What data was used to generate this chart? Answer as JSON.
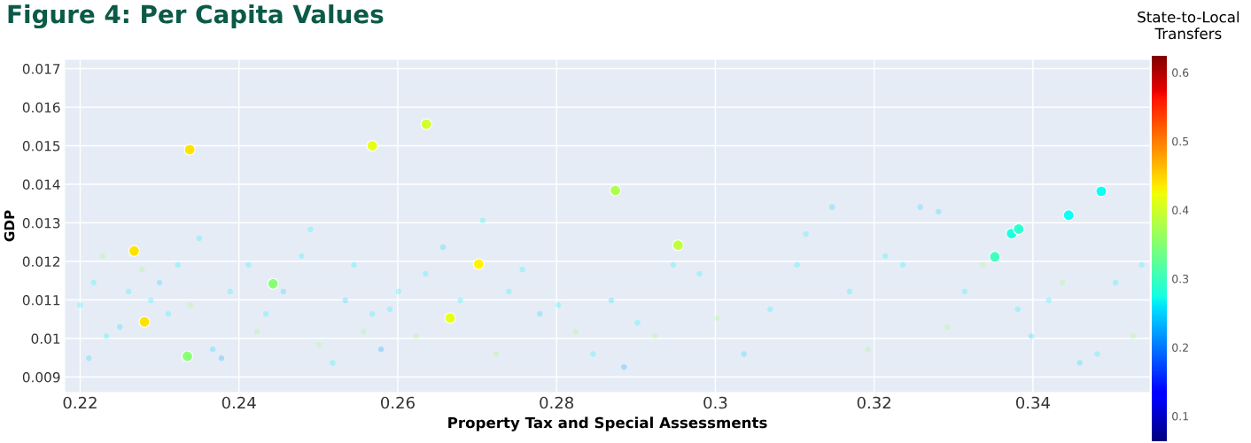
{
  "chart_data": {
    "type": "scatter",
    "title": "Figure 4: Per Capita Values",
    "xlabel": "Property Tax and Special Assessments",
    "ylabel": "GDP",
    "clabel": "State-to-Local Transfers",
    "xlim": [
      0.2181,
      0.3547
    ],
    "xticks": [
      0.22,
      0.24,
      0.26,
      0.28,
      0.3,
      0.32,
      0.34
    ],
    "ylim": [
      0.00861,
      0.01723
    ],
    "yticks": [
      0.009,
      0.01,
      0.011,
      0.012,
      0.013,
      0.014,
      0.015,
      0.016,
      0.017
    ],
    "clim": [
      0.064,
      0.625
    ],
    "cticks": [
      0.1,
      0.2,
      0.3,
      0.4,
      0.5,
      0.6
    ],
    "grid": true,
    "marker": "circle",
    "series": [
      {
        "x": [
          0.22,
          0.2211,
          0.2217,
          0.2228,
          0.2233,
          0.225,
          0.2261,
          0.2278,
          0.2289,
          0.23,
          0.2311,
          0.2323,
          0.2339,
          0.235,
          0.2367,
          0.2378,
          0.2389,
          0.2412,
          0.2423,
          0.2434,
          0.2456,
          0.2479,
          0.249,
          0.2501,
          0.2518,
          0.2534,
          0.2545,
          0.2557,
          0.2568,
          0.2579,
          0.259,
          0.2601,
          0.2623,
          0.2635,
          0.2657,
          0.2679,
          0.2707,
          0.2724,
          0.274,
          0.2757,
          0.2779,
          0.2802,
          0.2824,
          0.2846,
          0.2869,
          0.2885,
          0.2902,
          0.2924,
          0.2947,
          0.298,
          0.3002,
          0.3036,
          0.3069,
          0.3103,
          0.3114,
          0.3147,
          0.3169,
          0.3192,
          0.3214,
          0.3236,
          0.3258,
          0.3281,
          0.3292,
          0.3314,
          0.3337,
          0.3381,
          0.3398,
          0.342,
          0.3437,
          0.3459,
          0.3481,
          0.3504,
          0.3526,
          0.3537
        ],
        "values": [
          0.01087,
          0.00949,
          0.01145,
          0.01214,
          0.01006,
          0.0103,
          0.01122,
          0.01179,
          0.01099,
          0.01145,
          0.01064,
          0.01191,
          0.01087,
          0.0126,
          0.00972,
          0.00949,
          0.01122,
          0.01191,
          0.01018,
          0.01064,
          0.01122,
          0.01214,
          0.01283,
          0.00983,
          0.00937,
          0.01099,
          0.01191,
          0.01018,
          0.01064,
          0.00972,
          0.01076,
          0.01122,
          0.01006,
          0.01168,
          0.01237,
          0.01099,
          0.01306,
          0.0096,
          0.01122,
          0.01179,
          0.01064,
          0.01087,
          0.01018,
          0.0096,
          0.01099,
          0.00926,
          0.01041,
          0.01006,
          0.01191,
          0.01168,
          0.01053,
          0.0096,
          0.01076,
          0.01191,
          0.01271,
          0.01341,
          0.01122,
          0.00972,
          0.01214,
          0.01191,
          0.01341,
          0.01329,
          0.0103,
          0.01122,
          0.01191,
          0.01076,
          0.01006,
          0.01099,
          0.01145,
          0.00937,
          0.0096,
          0.01145,
          0.01006,
          0.01191
        ],
        "colors": [
          "#00f7ff",
          "#00d3ff",
          "#00f7ff",
          "#9cff63",
          "#00f7ff",
          "#00d3ff",
          "#00f7ff",
          "#9cff63",
          "#00f7ff",
          "#00d3ff",
          "#00f7ff",
          "#00f7ff",
          "#9cff63",
          "#00f7ff",
          "#00d3ff",
          "#009cff",
          "#00f7ff",
          "#00f7ff",
          "#9cff63",
          "#00f7ff",
          "#00d3ff",
          "#00f7ff",
          "#00f7ff",
          "#9cff63",
          "#00f7ff",
          "#00d3ff",
          "#00f7ff",
          "#9cff63",
          "#00f7ff",
          "#009cff",
          "#00f7ff",
          "#00f7ff",
          "#9cff63",
          "#00f7ff",
          "#00d3ff",
          "#00f7ff",
          "#00f7ff",
          "#9cff63",
          "#00f7ff",
          "#00f7ff",
          "#00d3ff",
          "#00f7ff",
          "#9cff63",
          "#00f7ff",
          "#00d3ff",
          "#009cff",
          "#00f7ff",
          "#9cff63",
          "#00f7ff",
          "#00f7ff",
          "#9cff63",
          "#00d3ff",
          "#00f7ff",
          "#00f7ff",
          "#00f7ff",
          "#00d3ff",
          "#00f7ff",
          "#9cff63",
          "#00f7ff",
          "#00f7ff",
          "#00d3ff",
          "#00d3ff",
          "#9cff63",
          "#00f7ff",
          "#9cff63",
          "#00f7ff",
          "#00d3ff",
          "#00f7ff",
          "#9cff63",
          "#00d3ff",
          "#00f7ff",
          "#00f7ff",
          "#9cff63",
          "#00f7ff"
        ]
      },
      {
        "x": [
          0.2338,
          0.2568,
          0.2636,
          0.2268,
          0.2281,
          0.2335,
          0.2443,
          0.2702,
          0.2666,
          0.2874,
          0.2953,
          0.3352,
          0.3373,
          0.3382,
          0.3445,
          0.3486
        ],
        "values": [
          0.0149,
          0.015,
          0.01556,
          0.01227,
          0.01043,
          0.00954,
          0.01142,
          0.01193,
          0.01053,
          0.01384,
          0.01242,
          0.01212,
          0.01272,
          0.01284,
          0.0132,
          0.01382
        ],
        "colors": [
          "#ffe300",
          "#e5ff1a",
          "#d2ff2d",
          "#ffe300",
          "#ffe300",
          "#89ff76",
          "#89ff76",
          "#fff500",
          "#e5ff1a",
          "#aeff51",
          "#c0ff3f",
          "#41ffbe",
          "#1cffe2",
          "#2effd0",
          "#0afff5",
          "#0afff5"
        ]
      }
    ]
  }
}
